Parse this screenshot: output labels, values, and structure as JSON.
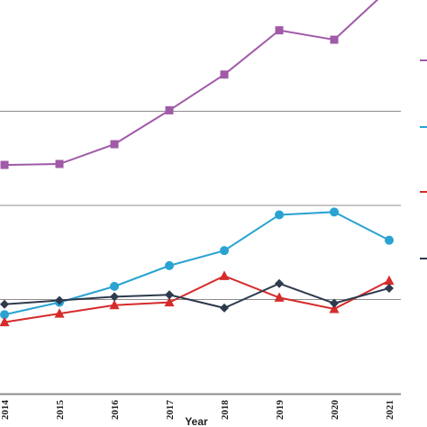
{
  "chart_data": {
    "type": "line",
    "title": "",
    "xlabel": "Year",
    "ylabel": "",
    "x": [
      "2014",
      "2015",
      "2016",
      "2017",
      "2018",
      "2019",
      "2020",
      "2021"
    ],
    "ylim": [
      0,
      5
    ],
    "grid": "horizontal",
    "legend_position": "right",
    "series": [
      {
        "color": "#a05aa8",
        "marker": "square",
        "values": [
          1.57,
          1.56,
          1.35,
          0.99,
          0.61,
          0.14,
          0.24,
          -0.3
        ]
      },
      {
        "color": "#2aa3d2",
        "marker": "circle",
        "values": [
          3.16,
          3.03,
          2.86,
          2.64,
          2.48,
          2.1,
          2.07,
          2.37
        ]
      },
      {
        "color": "#d62b2b",
        "marker": "triangle",
        "values": [
          3.24,
          3.15,
          3.06,
          3.03,
          2.75,
          2.98,
          3.1,
          2.8
        ]
      },
      {
        "color": "#2e3a4d",
        "marker": "diamond",
        "values": [
          3.05,
          3.01,
          2.97,
          2.95,
          3.09,
          2.83,
          3.04,
          2.88
        ]
      }
    ]
  }
}
